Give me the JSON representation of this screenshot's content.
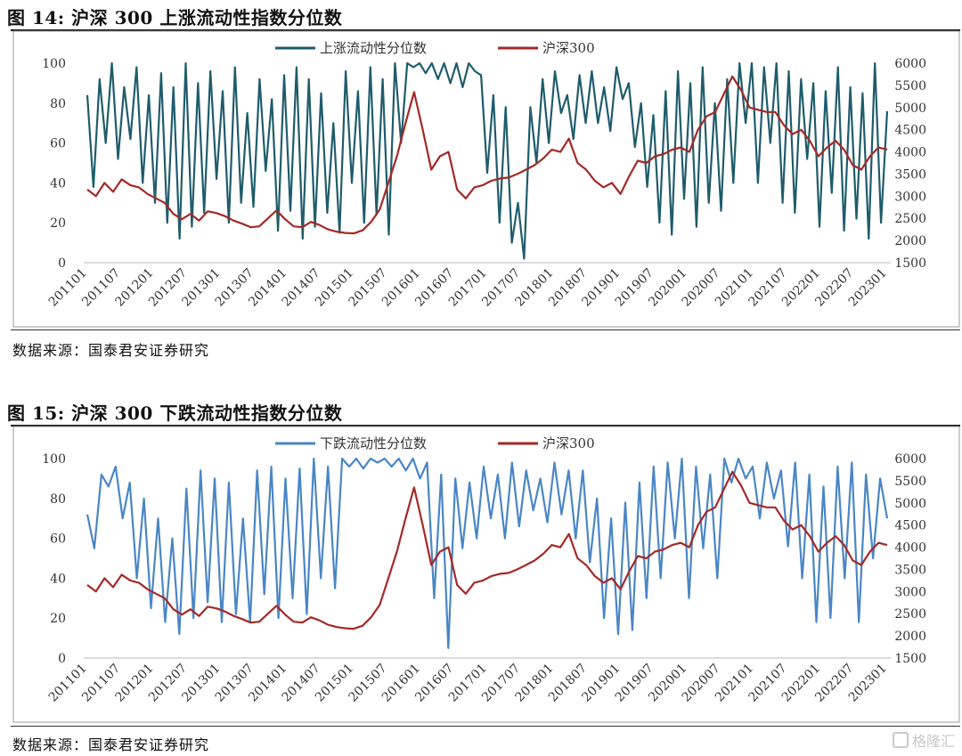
{
  "figures": [
    {
      "title": "图 14:  沪深 300 上涨流动性指数分位数",
      "source": "数据来源：国泰君安证券研究"
    },
    {
      "title": "图 15:  沪深 300 下跌流动性指数分位数",
      "source": "数据来源：国泰君安证券研究"
    }
  ],
  "watermark": "格隆汇",
  "chart_data": [
    {
      "type": "line",
      "title": "",
      "xlabel": "",
      "ylabel": "",
      "x_ticks": [
        "201101",
        "201107",
        "201201",
        "201207",
        "201301",
        "201307",
        "201401",
        "201407",
        "201501",
        "201507",
        "201601",
        "201607",
        "201701",
        "201707",
        "201801",
        "201807",
        "201901",
        "201907",
        "202001",
        "202007",
        "202101",
        "202107",
        "202201",
        "202207",
        "202301"
      ],
      "ylim_left": [
        0,
        100
      ],
      "yticks_left": [
        "0",
        "20",
        "40",
        "60",
        "80",
        "100"
      ],
      "ylim_right": [
        1500,
        6000
      ],
      "yticks_right": [
        "1500",
        "2000",
        "2500",
        "3000",
        "3500",
        "4000",
        "4500",
        "5000",
        "5500",
        "6000"
      ],
      "legend_position": "top-center",
      "series": [
        {
          "name": "上涨流动性分位数",
          "axis": "left",
          "color": "#1f5c6b",
          "values": [
            84,
            38,
            92,
            60,
            100,
            52,
            88,
            62,
            98,
            40,
            84,
            30,
            95,
            20,
            88,
            12,
            100,
            18,
            90,
            25,
            96,
            42,
            86,
            20,
            98,
            30,
            75,
            28,
            92,
            46,
            82,
            16,
            94,
            26,
            98,
            12,
            92,
            18,
            85,
            25,
            70,
            15,
            96,
            40,
            86,
            20,
            98,
            24,
            92,
            14,
            100,
            60,
            100,
            98,
            100,
            95,
            100,
            92,
            100,
            90,
            100,
            88,
            100,
            96,
            94,
            45,
            84,
            20,
            78,
            10,
            30,
            2,
            78,
            50,
            92,
            60,
            96,
            75,
            84,
            62,
            94,
            70,
            96,
            70,
            88,
            66,
            98,
            82,
            90,
            58,
            80,
            38,
            74,
            20,
            86,
            14,
            96,
            32,
            90,
            18,
            98,
            30,
            80,
            26,
            92,
            40,
            100,
            70,
            100,
            40,
            98,
            60,
            100,
            30,
            96,
            25,
            92,
            52,
            90,
            18,
            86,
            35,
            98,
            16,
            88,
            22,
            85,
            12,
            100,
            20,
            76
          ]
        },
        {
          "name": "沪深300",
          "axis": "right",
          "color": "#a32a26",
          "values": [
            3150,
            3000,
            3300,
            3100,
            3380,
            3250,
            3200,
            3050,
            2950,
            2850,
            2600,
            2480,
            2600,
            2450,
            2660,
            2620,
            2550,
            2450,
            2380,
            2300,
            2320,
            2500,
            2680,
            2480,
            2320,
            2300,
            2420,
            2350,
            2250,
            2200,
            2170,
            2160,
            2230,
            2420,
            2700,
            3300,
            3900,
            4650,
            5350,
            4500,
            3600,
            3900,
            4000,
            3150,
            2950,
            3200,
            3250,
            3350,
            3400,
            3420,
            3500,
            3600,
            3700,
            3850,
            4050,
            4000,
            4300,
            3750,
            3600,
            3350,
            3200,
            3300,
            3050,
            3450,
            3800,
            3750,
            3900,
            3950,
            4050,
            4100,
            4000,
            4500,
            4800,
            4900,
            5300,
            5700,
            5400,
            5000,
            4950,
            4900,
            4900,
            4600,
            4400,
            4500,
            4250,
            3900,
            4100,
            4250,
            4050,
            3700,
            3600,
            3900,
            4100,
            4050
          ]
        }
      ]
    },
    {
      "type": "line",
      "title": "",
      "xlabel": "",
      "ylabel": "",
      "x_ticks": [
        "201101",
        "201107",
        "201201",
        "201207",
        "201301",
        "201307",
        "201401",
        "201407",
        "201501",
        "201507",
        "201601",
        "201607",
        "201701",
        "201707",
        "201801",
        "201807",
        "201901",
        "201907",
        "202001",
        "202007",
        "202101",
        "202107",
        "202201",
        "202207",
        "202301"
      ],
      "ylim_left": [
        0,
        100
      ],
      "yticks_left": [
        "0",
        "20",
        "40",
        "60",
        "80",
        "100"
      ],
      "ylim_right": [
        1500,
        6000
      ],
      "yticks_right": [
        "1500",
        "2000",
        "2500",
        "3000",
        "3500",
        "4000",
        "4500",
        "5000",
        "5500",
        "6000"
      ],
      "legend_position": "top-center",
      "series": [
        {
          "name": "下跌流动性分位数",
          "axis": "left",
          "color": "#4a86c5",
          "values": [
            72,
            55,
            92,
            86,
            96,
            70,
            88,
            40,
            80,
            25,
            70,
            18,
            60,
            12,
            85,
            20,
            94,
            28,
            90,
            18,
            88,
            22,
            70,
            18,
            94,
            32,
            96,
            20,
            90,
            30,
            95,
            22,
            100,
            40,
            96,
            35,
            100,
            96,
            100,
            95,
            100,
            98,
            100,
            96,
            100,
            94,
            100,
            90,
            98,
            30,
            92,
            5,
            90,
            55,
            88,
            60,
            96,
            70,
            92,
            60,
            98,
            66,
            94,
            74,
            90,
            68,
            98,
            72,
            94,
            60,
            94,
            48,
            80,
            20,
            70,
            12,
            78,
            14,
            88,
            30,
            96,
            40,
            98,
            60,
            100,
            30,
            96,
            55,
            92,
            40,
            100,
            88,
            100,
            90,
            96,
            70,
            98,
            80,
            94,
            56,
            98,
            40,
            92,
            18,
            86,
            20,
            96,
            40,
            98,
            18,
            92,
            50,
            90,
            70
          ]
        },
        {
          "name": "沪深300",
          "axis": "right",
          "color": "#a32a26",
          "values": [
            3150,
            3000,
            3300,
            3100,
            3380,
            3250,
            3200,
            3050,
            2950,
            2850,
            2600,
            2480,
            2600,
            2450,
            2660,
            2620,
            2550,
            2450,
            2380,
            2300,
            2320,
            2500,
            2680,
            2480,
            2320,
            2300,
            2420,
            2350,
            2250,
            2200,
            2170,
            2160,
            2230,
            2420,
            2700,
            3300,
            3900,
            4650,
            5350,
            4500,
            3600,
            3900,
            4000,
            3150,
            2950,
            3200,
            3250,
            3350,
            3400,
            3420,
            3500,
            3600,
            3700,
            3850,
            4050,
            4000,
            4300,
            3750,
            3600,
            3350,
            3200,
            3300,
            3050,
            3450,
            3800,
            3750,
            3900,
            3950,
            4050,
            4100,
            4000,
            4500,
            4800,
            4900,
            5300,
            5700,
            5400,
            5000,
            4950,
            4900,
            4900,
            4600,
            4400,
            4500,
            4250,
            3900,
            4100,
            4250,
            4050,
            3700,
            3600,
            3900,
            4100,
            4050
          ]
        }
      ]
    }
  ]
}
